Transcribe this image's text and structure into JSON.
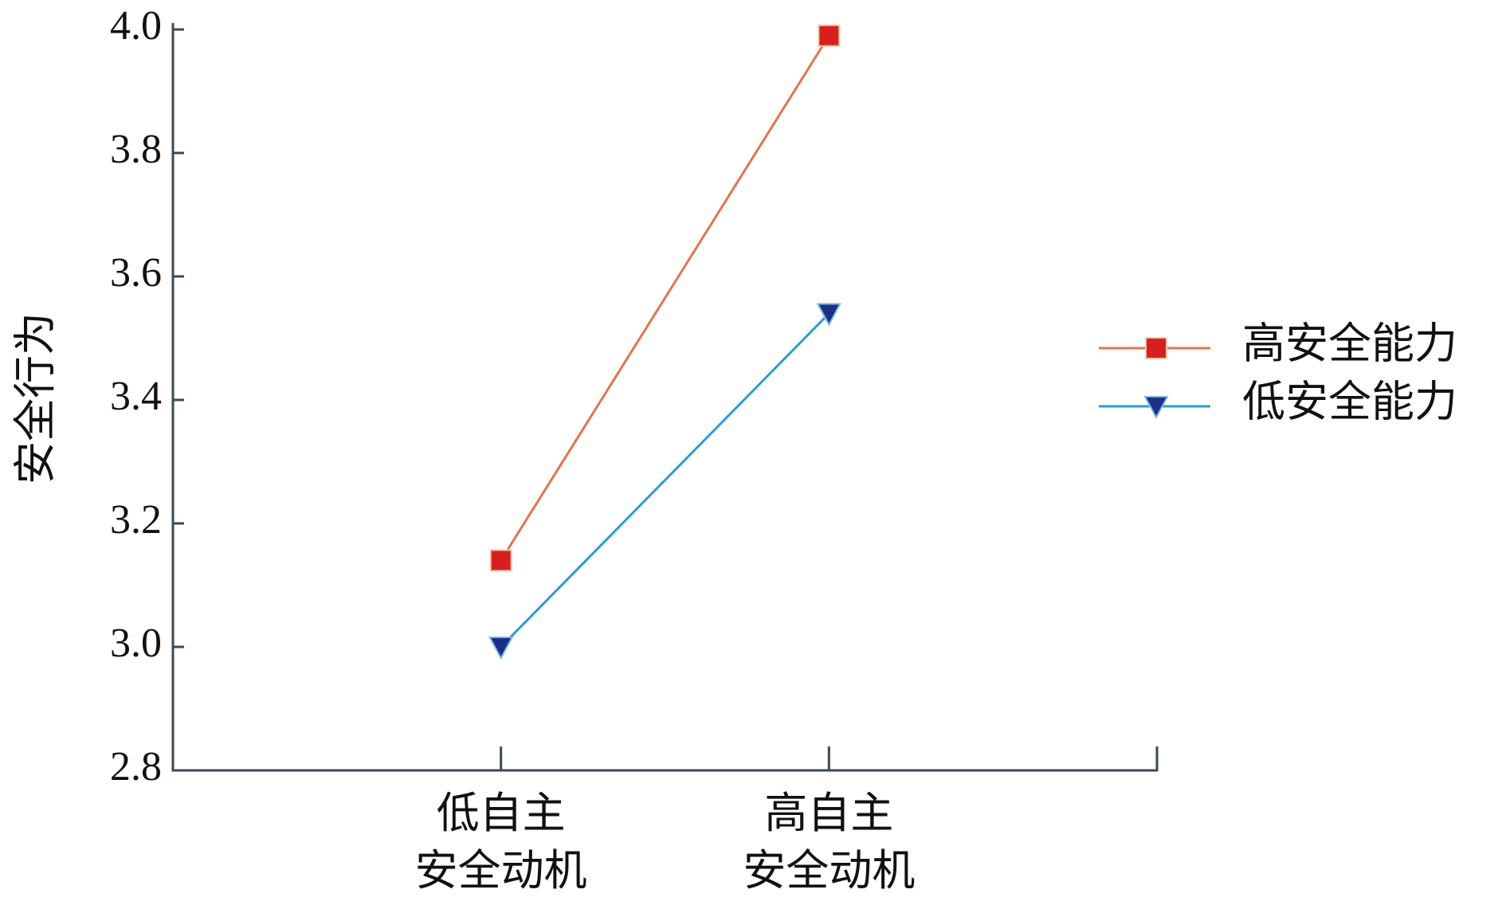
{
  "chart_data": {
    "type": "line",
    "y_label": "安全行为",
    "categories": [
      "低自主\n安全动机",
      "高自主\n安全动机"
    ],
    "series": [
      {
        "name": "高安全能力",
        "color": "#e2754f",
        "marker_color": "#d71f1f",
        "marker": "square",
        "values": [
          3.14,
          3.99
        ]
      },
      {
        "name": "低安全能力",
        "color": "#2f9ad8",
        "marker_color": "#1b2f86",
        "marker": "triangle",
        "values": [
          3.0,
          3.54
        ]
      }
    ],
    "ylim": [
      2.8,
      4.0
    ],
    "yticks": [
      {
        "value": 2.8,
        "label": "2.8"
      },
      {
        "value": 3.0,
        "label": "3.0"
      },
      {
        "value": 3.2,
        "label": "3.2"
      },
      {
        "value": 3.4,
        "label": "3.4"
      },
      {
        "value": 3.6,
        "label": "3.6"
      },
      {
        "value": 3.8,
        "label": "3.8"
      },
      {
        "value": 4.0,
        "label": "4.0"
      }
    ],
    "legend": "right"
  }
}
